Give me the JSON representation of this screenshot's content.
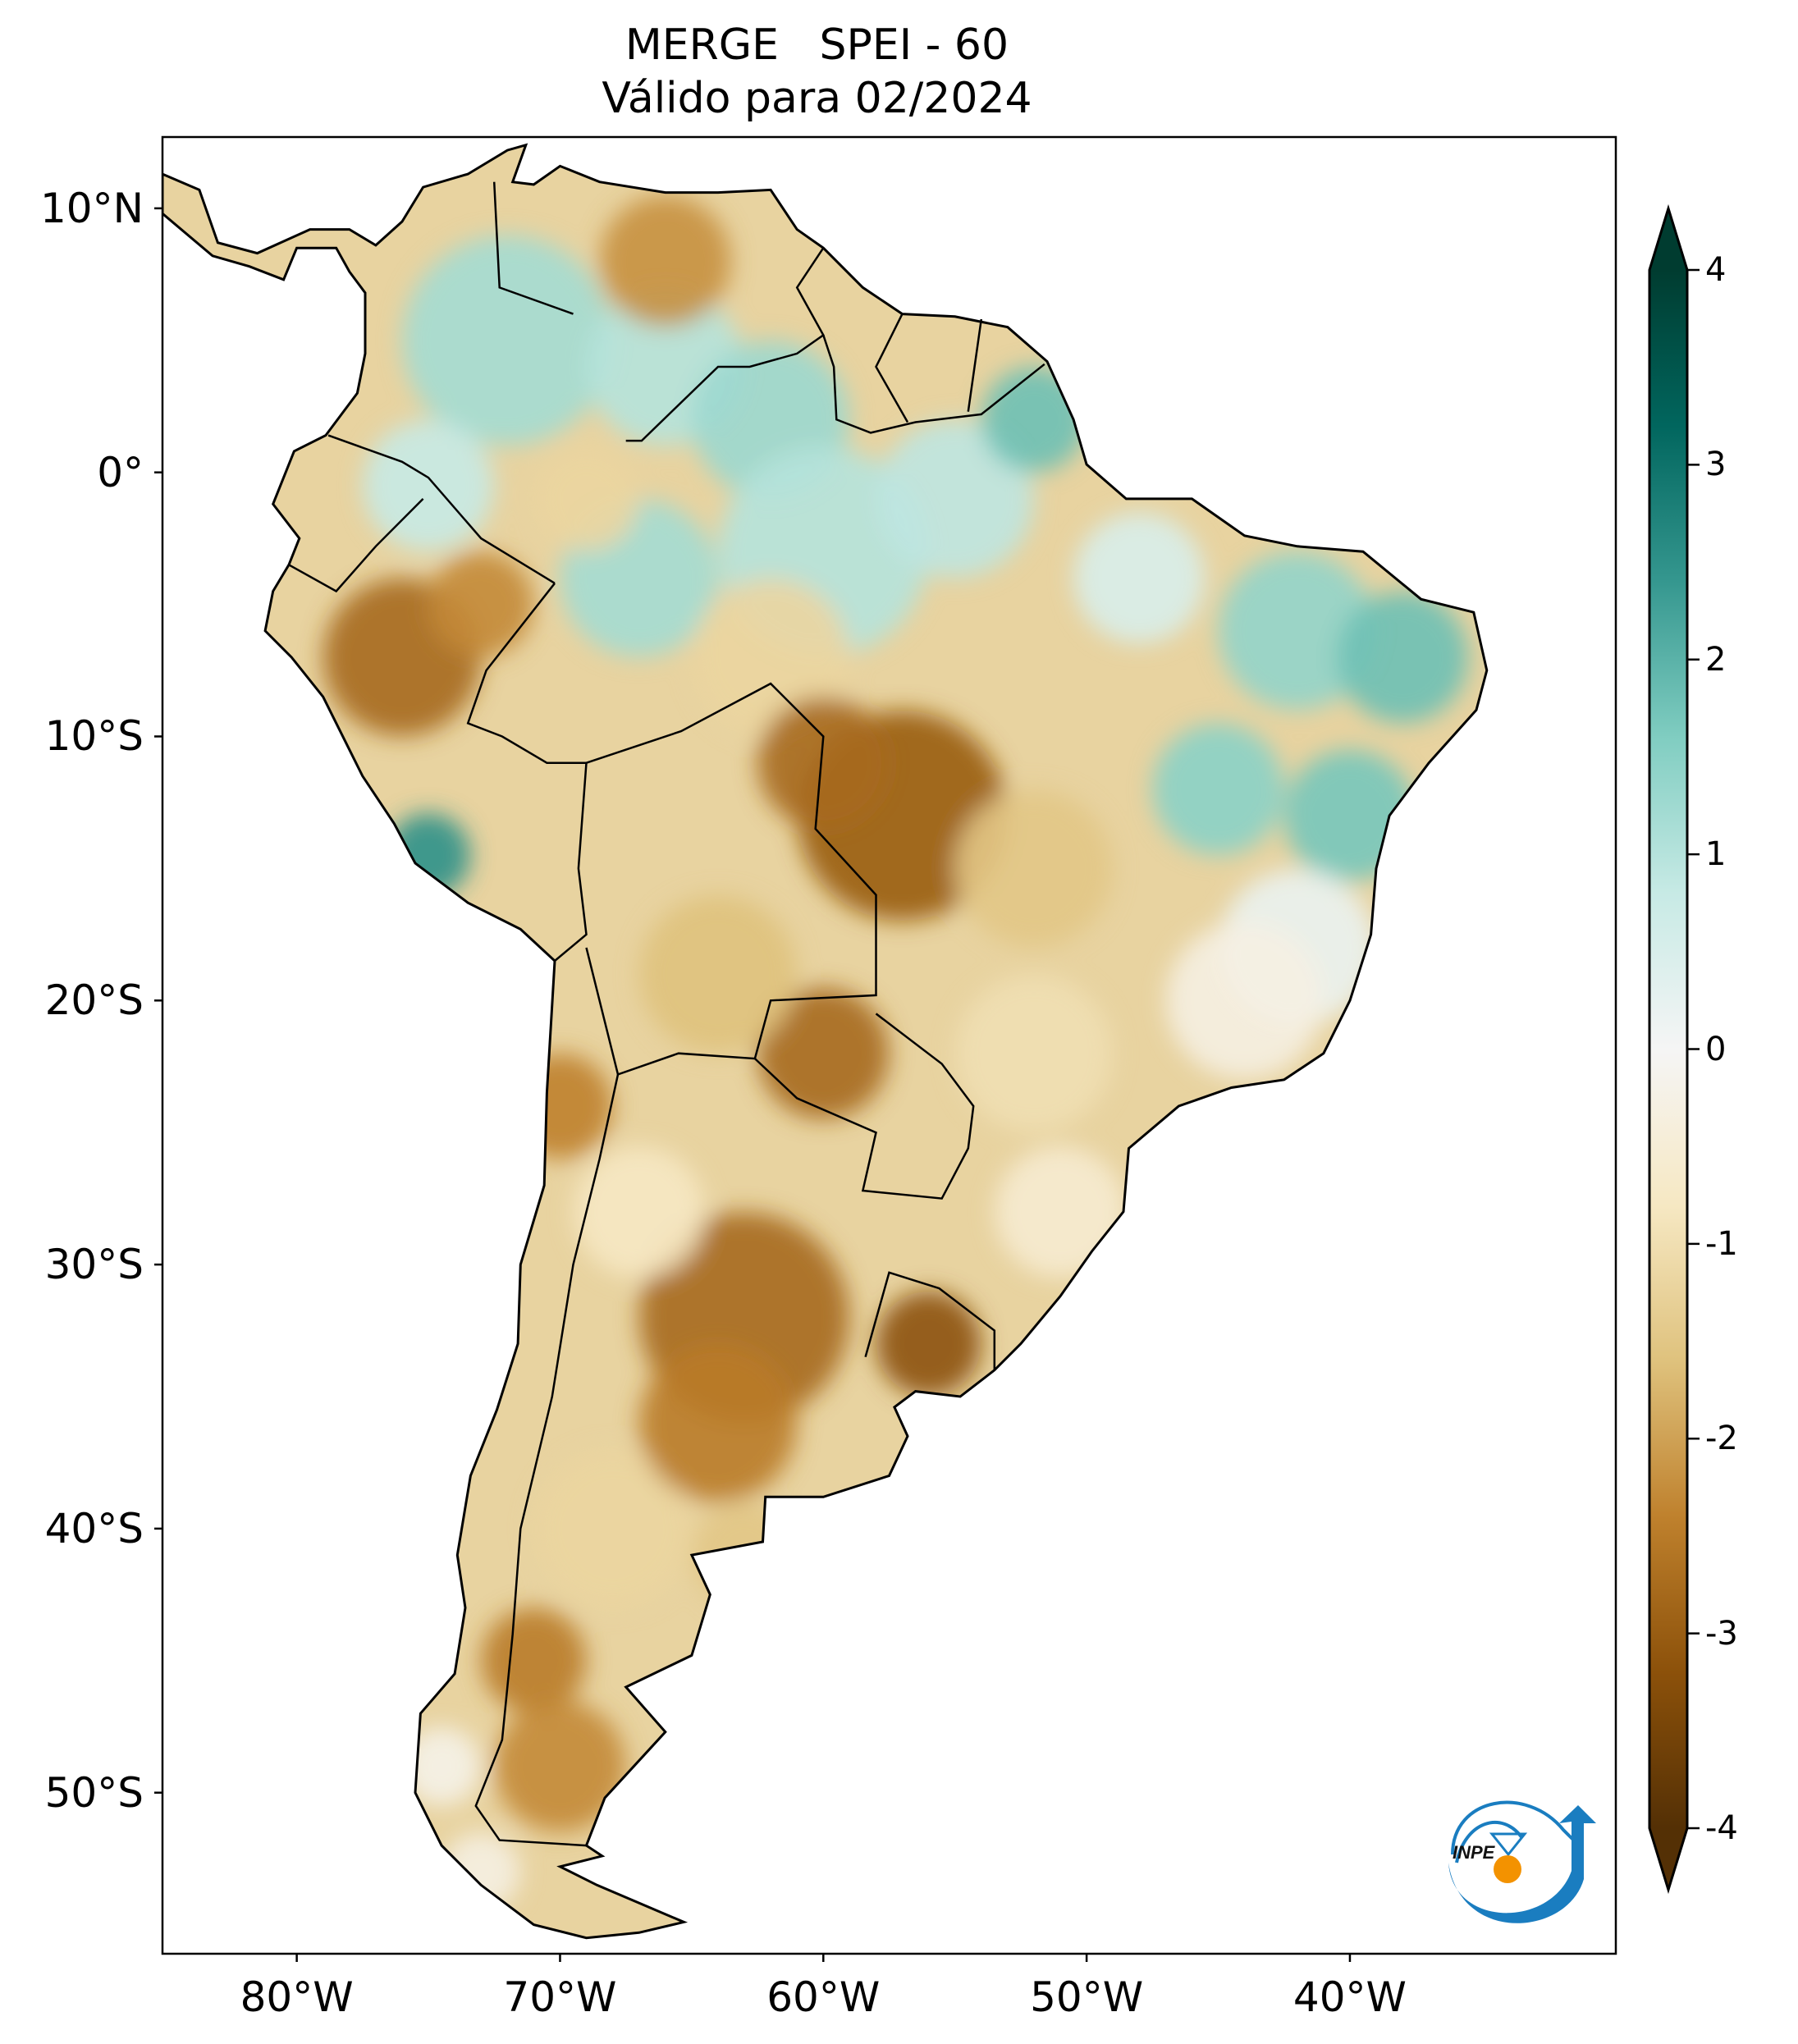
{
  "title": {
    "line1": "MERGE   SPEI - 60",
    "line2": "Válido para 02/2024"
  },
  "axes": {
    "lat_ticks": [
      {
        "value": 10,
        "label": "10°N"
      },
      {
        "value": 0,
        "label": "0°"
      },
      {
        "value": -10,
        "label": "10°S"
      },
      {
        "value": -20,
        "label": "20°S"
      },
      {
        "value": -30,
        "label": "30°S"
      },
      {
        "value": -40,
        "label": "40°S"
      },
      {
        "value": -50,
        "label": "50°S"
      }
    ],
    "lon_ticks": [
      {
        "value": -80,
        "label": "80°W"
      },
      {
        "value": -70,
        "label": "70°W"
      },
      {
        "value": -60,
        "label": "60°W"
      },
      {
        "value": -50,
        "label": "50°W"
      },
      {
        "value": -40,
        "label": "40°W"
      }
    ],
    "lon_range": [
      -85.1,
      -29.9
    ],
    "lat_range": [
      -56.1,
      12.7
    ]
  },
  "colorbar": {
    "ticks": [
      {
        "value": 4,
        "label": "4"
      },
      {
        "value": 3,
        "label": "3"
      },
      {
        "value": 2,
        "label": "2"
      },
      {
        "value": 1,
        "label": "1"
      },
      {
        "value": 0,
        "label": "0"
      },
      {
        "value": -1,
        "label": "-1"
      },
      {
        "value": -2,
        "label": "-2"
      },
      {
        "value": -3,
        "label": "-3"
      },
      {
        "value": -4,
        "label": "-4"
      }
    ],
    "range": [
      -4,
      4
    ],
    "extend": "both",
    "colormap": "BrBG",
    "colors": [
      "#543005",
      "#8c510a",
      "#bf812d",
      "#dfc27d",
      "#f6e8c3",
      "#f5f5f5",
      "#c7eae5",
      "#80cdc1",
      "#35978f",
      "#01665e",
      "#003c30"
    ]
  },
  "logo": {
    "text": "INPE"
  }
}
